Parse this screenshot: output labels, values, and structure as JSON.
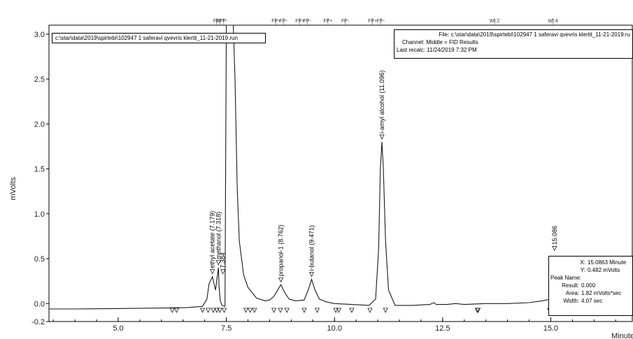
{
  "run_file_label": "c:\\star\\data\\2019\\spirtebi\\102947 1 saferavi qvevris klertit_11-21-2019.run",
  "file_info": {
    "file_label": "File:",
    "file": "c:\\star\\data\\2019\\spirtebi\\102947 1 saferavi qvevris klertit_11-21-2019.ru",
    "channel_label": "Channel:",
    "channel": "Middle = FID  Results",
    "recalc_label": "Last recalc:",
    "last_recalc": "11/24/2019 7:32 PM"
  },
  "cursor_info": {
    "x_label": "X:",
    "x": "15.0863 Minute",
    "y_label": "Y:",
    "y": "0.482 mVolts",
    "peak_name_label": "Peak Name:",
    "peak_name": "",
    "result_label": "Result:",
    "result": "0.000",
    "area_label": "Area:",
    "area": "1.82 mVolts*sec",
    "width_label": "Width:",
    "width": "4.07 sec"
  },
  "chart_data": {
    "type": "line",
    "xlabel": "Minute",
    "ylabel": "mVolts",
    "xlim": [
      3.4,
      16.9
    ],
    "ylim": [
      -0.2,
      3.1
    ],
    "x_ticks": [
      5.0,
      7.5,
      10.0,
      12.5,
      15.0
    ],
    "x_tick_labels": [
      "5.0",
      "7.5",
      "10.0",
      "12.5",
      "15.0"
    ],
    "y_ticks": [
      -0.2,
      0.0,
      0.5,
      1.0,
      1.5,
      2.0,
      2.5,
      3.0
    ],
    "y_tick_labels": [
      "-0.2",
      "0.0",
      "0.5",
      "1.0",
      "1.5",
      "2.0",
      "2.5",
      "3.0"
    ],
    "series": [
      {
        "color": "#1a1a1a",
        "x": [
          3.4,
          4.0,
          5.0,
          6.0,
          6.6,
          6.95,
          7.05,
          7.1,
          7.179,
          7.25,
          7.318,
          7.33,
          7.36,
          7.4,
          7.43,
          7.47,
          7.48,
          7.5,
          7.54,
          7.6,
          7.66,
          7.7,
          7.75,
          7.8,
          7.9,
          8.0,
          8.2,
          8.4,
          8.5,
          8.6,
          8.7,
          8.762,
          8.85,
          8.95,
          9.1,
          9.3,
          9.4,
          9.471,
          9.55,
          9.65,
          9.8,
          10.0,
          10.4,
          10.8,
          10.95,
          11.02,
          11.06,
          11.096,
          11.13,
          11.18,
          11.25,
          11.4,
          11.8,
          12.2,
          12.3,
          12.35,
          12.6,
          12.8,
          13.0,
          13.5,
          14.0,
          14.5,
          14.8,
          15.0,
          15.0863,
          15.15,
          15.3,
          15.6
        ],
        "y": [
          -0.06,
          -0.06,
          -0.055,
          -0.05,
          -0.045,
          -0.03,
          0.05,
          0.22,
          0.3,
          0.15,
          0.4,
          0.2,
          0.03,
          -0.02,
          -0.025,
          -0.03,
          1.2,
          3.1,
          3.1,
          3.1,
          3.1,
          2.5,
          1.3,
          0.7,
          0.32,
          0.18,
          0.06,
          0.03,
          0.04,
          0.08,
          0.16,
          0.21,
          0.12,
          0.05,
          0.03,
          0.04,
          0.16,
          0.27,
          0.15,
          0.05,
          0.02,
          0.0,
          -0.01,
          -0.02,
          0.05,
          0.6,
          1.5,
          1.8,
          1.5,
          0.7,
          0.15,
          -0.02,
          -0.02,
          -0.01,
          0.01,
          -0.01,
          -0.01,
          0.0,
          -0.01,
          0.0,
          0.0,
          0.01,
          0.03,
          0.05,
          0.07,
          0.04,
          0.06,
          0.1
        ]
      }
    ],
    "peak_labels": [
      {
        "x": 7.179,
        "y": 0.3,
        "text": "ethyl acetate (7.179)"
      },
      {
        "x": 7.318,
        "y": 0.4,
        "text": "methanol (7.318)"
      },
      {
        "x": 7.42,
        "y": 0.3,
        "text": "7.384"
      },
      {
        "x": 8.762,
        "y": 0.21,
        "text": "propanol-1  (8.762)"
      },
      {
        "x": 9.471,
        "y": 0.27,
        "text": "i-butanol (9.471)"
      },
      {
        "x": 11.096,
        "y": 1.8,
        "text": "i-amyl alcohol (11.096)"
      },
      {
        "x": 15.0863,
        "y": 0.56,
        "text": "15.086"
      }
    ],
    "event_marks": [
      {
        "x": 7.27,
        "text": "FP"
      },
      {
        "x": 7.35,
        "text": "SP"
      },
      {
        "x": 7.44,
        "text": "FP-"
      },
      {
        "x": 8.65,
        "text": "FP+"
      },
      {
        "x": 8.82,
        "text": "FP-"
      },
      {
        "x": 9.2,
        "text": "FP+"
      },
      {
        "x": 9.37,
        "text": "FP-"
      },
      {
        "x": 9.85,
        "text": "FP+"
      },
      {
        "x": 10.25,
        "text": "FP-"
      },
      {
        "x": 10.88,
        "text": "FP+"
      },
      {
        "x": 11.07,
        "text": "FP-"
      },
      {
        "x": 13.7,
        "text": "WI:2"
      },
      {
        "x": 15.05,
        "text": "WI:4"
      }
    ],
    "baseline_markers_x": [
      6.25,
      6.35,
      6.95,
      7.08,
      7.2,
      7.28,
      7.35,
      7.45,
      7.95,
      8.05,
      8.15,
      8.6,
      8.75,
      8.9,
      9.3,
      9.6,
      10.03,
      10.1,
      10.4,
      10.82,
      11.18,
      13.3,
      13.32,
      14.97
    ]
  }
}
